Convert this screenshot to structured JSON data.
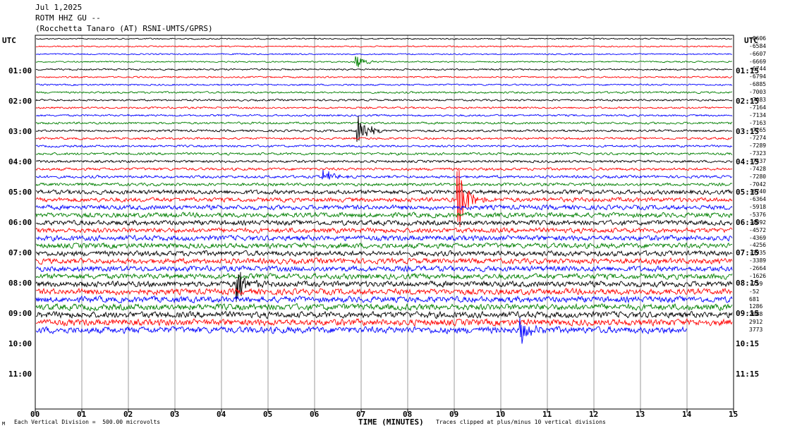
{
  "header": {
    "date": "Jul 1,2025",
    "station": "ROTM HHZ GU --",
    "location": "(Rocchetta Tanaro (AT) RSNI-UMTS/GPRS)"
  },
  "axis": {
    "left_title": "UTC",
    "right_title": "UTC",
    "x_title": "TIME (MINUTES)"
  },
  "footer": {
    "left": "Each Vertical Division =  500.00 microvolts",
    "right": "Traces clipped at plus/minus 10 vertical divisions",
    "mark": "M"
  },
  "colors": {
    "black": "#000000",
    "red": "#ff0000",
    "blue": "#0000ff",
    "green": "#007f00",
    "grid": "#808080"
  },
  "chart_data": {
    "type": "line",
    "title": "Jul 1,2025",
    "subtitle": "ROTM HHZ GU -- (Rocchetta Tanaro (AT) RSNI-UMTS/GPRS)",
    "xlabel": "TIME (MINUTES)",
    "ylabel": "UTC",
    "xlim": [
      0,
      15
    ],
    "x_ticks": [
      "00",
      "01",
      "02",
      "03",
      "04",
      "05",
      "06",
      "07",
      "08",
      "09",
      "10",
      "11",
      "12",
      "13",
      "14",
      "15"
    ],
    "left_time_labels": [
      "01:00",
      "02:00",
      "03:00",
      "04:00",
      "05:00",
      "06:00",
      "07:00",
      "08:00",
      "09:00",
      "10:00",
      "11:00"
    ],
    "right_time_labels": [
      "01:15",
      "02:15",
      "03:15",
      "04:15",
      "05:15",
      "06:15",
      "07:15",
      "08:15",
      "09:15",
      "10:15",
      "11:15"
    ],
    "trace_color_cycle": [
      "black",
      "red",
      "blue",
      "green"
    ],
    "trace_offsets": [
      "-8606",
      "-6584",
      "-6607",
      "-6669",
      "-6744",
      "-6794",
      "-6885",
      "-7003",
      "-7083",
      "-7164",
      "-7134",
      "-7163",
      "-7265",
      "-7274",
      "-7289",
      "-7323",
      "-7437",
      "-7428",
      "-7280",
      "-7042",
      "-6740",
      "-6364",
      "-5918",
      "-5376",
      "-4892",
      "-4572",
      "-4369",
      "-4256",
      "-3935",
      "-3389",
      "-2664",
      "-1626",
      "-759",
      "-52",
      "681",
      "1286",
      "2088",
      "2912",
      "3773"
    ],
    "trace_amplitudes": [
      0.5,
      0.5,
      0.5,
      0.5,
      0.6,
      0.6,
      0.6,
      0.7,
      0.7,
      0.7,
      0.7,
      0.8,
      0.8,
      0.8,
      0.8,
      0.9,
      0.9,
      1.0,
      1.0,
      1.1,
      1.6,
      1.6,
      1.7,
      1.8,
      1.8,
      1.8,
      1.9,
      1.9,
      1.9,
      2.0,
      2.0,
      2.0,
      2.1,
      2.2,
      2.2,
      2.3,
      2.3,
      2.4,
      2.4
    ],
    "events": [
      {
        "trace": 3,
        "minute": 6.9,
        "amplitude": 1.5
      },
      {
        "trace": 12,
        "minute": 6.95,
        "amplitude": 4.0
      },
      {
        "trace": 18,
        "minute": 6.2,
        "amplitude": 2.0
      },
      {
        "trace": 21,
        "minute": 9.1,
        "amplitude": 8.0
      },
      {
        "trace": 32,
        "minute": 4.35,
        "amplitude": 4.5
      },
      {
        "trace": 38,
        "minute": 10.45,
        "amplitude": 3.0
      }
    ],
    "last_trace_end_minute": 14.0,
    "grid": true
  }
}
